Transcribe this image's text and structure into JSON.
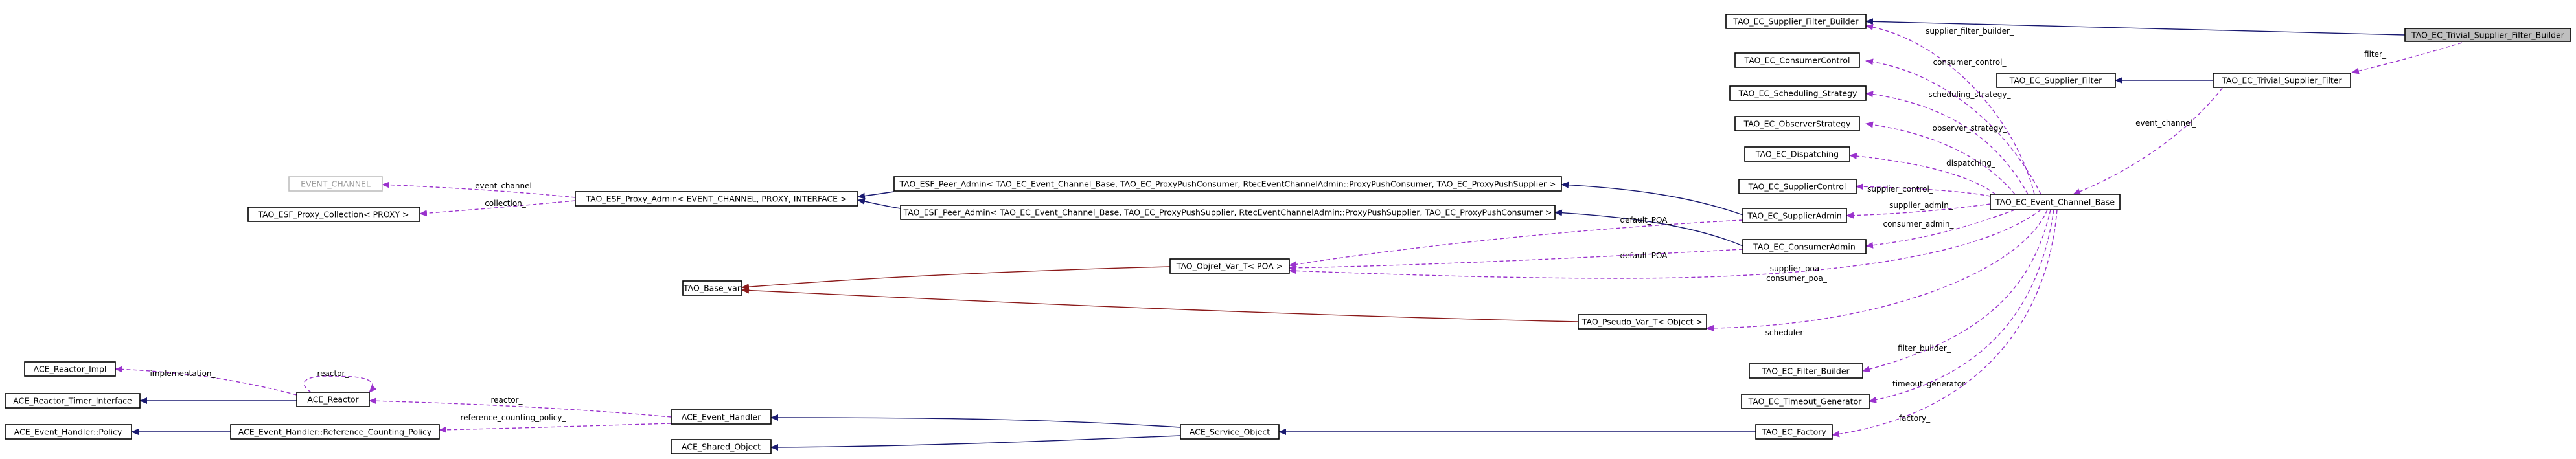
{
  "diagram": {
    "nodes": [
      {
        "id": "trivial_builder",
        "label": "TAO_EC_Trivial_Supplier_Filter_Builder",
        "focus": true
      },
      {
        "id": "supplier_filter_builder",
        "label": "TAO_EC_Supplier_Filter_Builder"
      },
      {
        "id": "consumer_control",
        "label": "TAO_EC_ConsumerControl"
      },
      {
        "id": "supplier_filter",
        "label": "TAO_EC_Supplier_Filter"
      },
      {
        "id": "trivial_filter",
        "label": "TAO_EC_Trivial_Supplier_Filter"
      },
      {
        "id": "scheduling_strategy",
        "label": "TAO_EC_Scheduling_Strategy"
      },
      {
        "id": "observer_strategy",
        "label": "TAO_EC_ObserverStrategy"
      },
      {
        "id": "dispatching",
        "label": "TAO_EC_Dispatching"
      },
      {
        "id": "event_channel",
        "label": "EVENT_CHANNEL",
        "ghost": true
      },
      {
        "id": "peer_admin_consumer",
        "label": "TAO_ESF_Peer_Admin< TAO_EC_Event_Channel_Base, TAO_EC_ProxyPushConsumer, RtecEventChannelAdmin::ProxyPushConsumer, TAO_EC_ProxyPushSupplier >"
      },
      {
        "id": "proxy_admin",
        "label": "TAO_ESF_Proxy_Admin< EVENT_CHANNEL, PROXY, INTERFACE >"
      },
      {
        "id": "supplier_control",
        "label": "TAO_EC_SupplierControl"
      },
      {
        "id": "proxy_collection",
        "label": "TAO_ESF_Proxy_Collection< PROXY >"
      },
      {
        "id": "peer_admin_supplier",
        "label": "TAO_ESF_Peer_Admin< TAO_EC_Event_Channel_Base, TAO_EC_ProxyPushSupplier, RtecEventChannelAdmin::ProxyPushSupplier, TAO_EC_ProxyPushConsumer >"
      },
      {
        "id": "supplier_admin",
        "label": "TAO_EC_SupplierAdmin"
      },
      {
        "id": "event_channel_base",
        "label": "TAO_EC_Event_Channel_Base"
      },
      {
        "id": "consumer_admin",
        "label": "TAO_EC_ConsumerAdmin"
      },
      {
        "id": "objref_var",
        "label": "TAO_Objref_Var_T< POA >"
      },
      {
        "id": "base_var",
        "label": "TAO_Base_var"
      },
      {
        "id": "pseudo_var",
        "label": "TAO_Pseudo_Var_T< Object >"
      },
      {
        "id": "reactor_impl",
        "label": "ACE_Reactor_Impl"
      },
      {
        "id": "reactor",
        "label": "ACE_Reactor"
      },
      {
        "id": "filter_builder",
        "label": "TAO_EC_Filter_Builder"
      },
      {
        "id": "reactor_timer_interface",
        "label": "ACE_Reactor_Timer_Interface"
      },
      {
        "id": "timeout_generator",
        "label": "TAO_EC_Timeout_Generator"
      },
      {
        "id": "event_handler",
        "label": "ACE_Event_Handler"
      },
      {
        "id": "event_handler_policy",
        "label": "ACE_Event_Handler::Policy"
      },
      {
        "id": "ref_counting_policy",
        "label": "ACE_Event_Handler::Reference_Counting_Policy"
      },
      {
        "id": "service_object",
        "label": "ACE_Service_Object"
      },
      {
        "id": "ec_factory",
        "label": "TAO_EC_Factory"
      },
      {
        "id": "shared_object",
        "label": "ACE_Shared_Object"
      }
    ],
    "edge_labels": [
      {
        "id": "supplier_filter_builder",
        "text": "supplier_filter_builder_"
      },
      {
        "id": "consumer_control",
        "text": "consumer_control_"
      },
      {
        "id": "filter",
        "text": "filter_"
      },
      {
        "id": "scheduling_strategy",
        "text": "scheduling_strategy_"
      },
      {
        "id": "event_channel_tf",
        "text": "event_channel_"
      },
      {
        "id": "observer_strategy",
        "text": "observer_strategy_"
      },
      {
        "id": "dispatching",
        "text": "dispatching_"
      },
      {
        "id": "event_channel_pa",
        "text": "event_channel_"
      },
      {
        "id": "collection",
        "text": "collection_"
      },
      {
        "id": "supplier_control",
        "text": "supplier_control_"
      },
      {
        "id": "supplier_admin",
        "text": "supplier_admin_"
      },
      {
        "id": "consumer_admin",
        "text": "consumer_admin_"
      },
      {
        "id": "default_poa_1",
        "text": "default_POA_"
      },
      {
        "id": "default_poa_2",
        "text": "default_POA_"
      },
      {
        "id": "supplier_poa",
        "text": "supplier_poa_"
      },
      {
        "id": "consumer_poa",
        "text": "consumer_poa_"
      },
      {
        "id": "scheduler",
        "text": "scheduler_"
      },
      {
        "id": "implementation",
        "text": "implementation_"
      },
      {
        "id": "reactor_self",
        "text": "reactor_"
      },
      {
        "id": "filter_builder",
        "text": "filter_builder_"
      },
      {
        "id": "reactor_eh",
        "text": "reactor_"
      },
      {
        "id": "timeout_generator",
        "text": "timeout_generator_"
      },
      {
        "id": "reference_counting_policy",
        "text": "reference_counting_policy_"
      },
      {
        "id": "factory",
        "text": "factory_"
      }
    ]
  },
  "colors": {
    "inheritance": "#191970",
    "usage": "#9a32cd",
    "template": "#8b1a1a",
    "focus_fill": "#bfbfbf"
  }
}
